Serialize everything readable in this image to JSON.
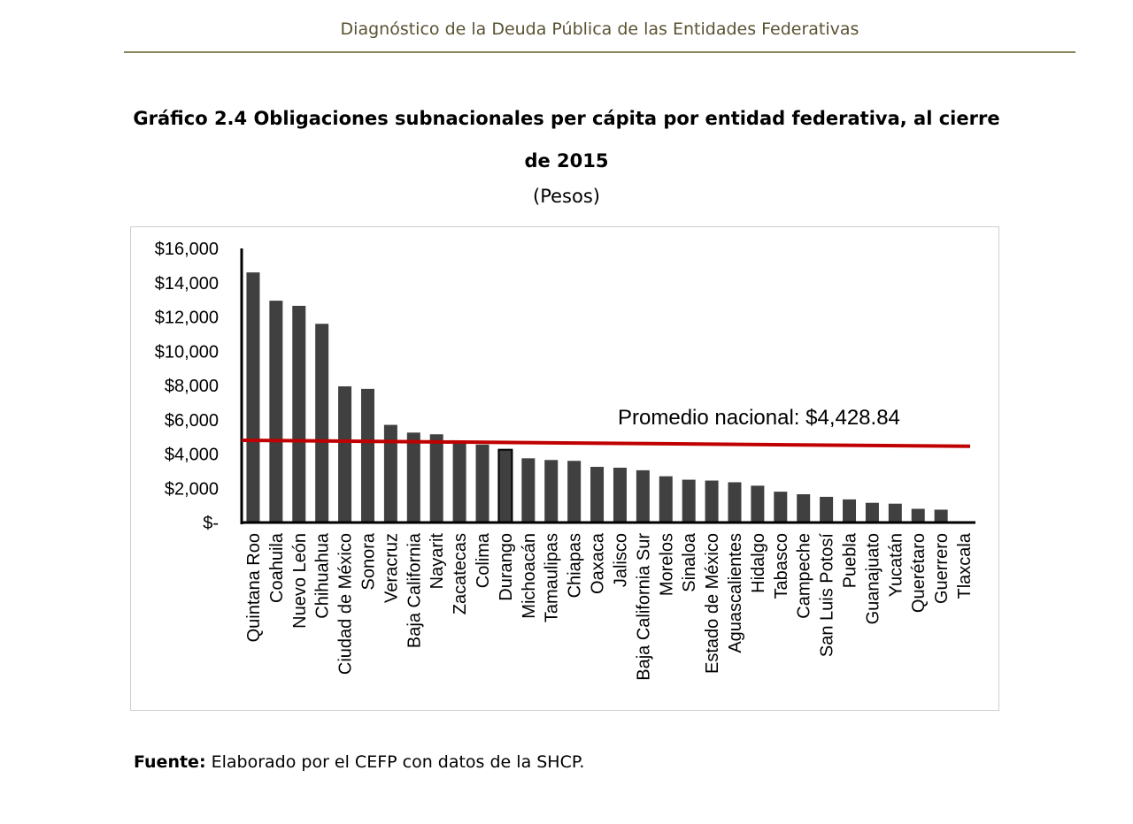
{
  "header": {
    "title": "Diagnóstico de la Deuda Pública de las Entidades Federativas"
  },
  "chart": {
    "title": "Gráfico 2.4 Obligaciones subnacionales per cápita por entidad federativa, al cierre de 2015",
    "subtitle": "(Pesos)"
  },
  "source": {
    "label": "Fuente:",
    "text": "Elaborado por el CEFP con datos de la SHCP."
  },
  "chart_data": {
    "type": "bar",
    "categories": [
      "Quintana Roo",
      "Coahuila",
      "Nuevo León",
      "Chihuahua",
      "Ciudad de México",
      "Sonora",
      "Veracruz",
      "Baja California",
      "Nayarit",
      "Zacatecas",
      "Colima",
      "Durango",
      "Michoacán",
      "Tamaulipas",
      "Chiapas",
      "Oaxaca",
      "Jalisco",
      "Baja California Sur",
      "Morelos",
      "Sinaloa",
      "Estado de México",
      "Aguascalientes",
      "Hidalgo",
      "Tabasco",
      "Campeche",
      "San Luis Potosí",
      "Puebla",
      "Guanajuato",
      "Yucatán",
      "Querétaro",
      "Guerrero",
      "Tlaxcala"
    ],
    "values": [
      14600,
      12950,
      12650,
      11600,
      7950,
      7800,
      5700,
      5250,
      5150,
      4800,
      4550,
      4250,
      3750,
      3650,
      3600,
      3250,
      3200,
      3050,
      2700,
      2500,
      2450,
      2350,
      2150,
      1800,
      1650,
      1500,
      1350,
      1150,
      1100,
      800,
      750,
      0
    ],
    "highlight_index": 11,
    "yticks": [
      "$16,000",
      "$14,000",
      "$12,000",
      "$10,000",
      "$8,000",
      "$6,000",
      "$4,000",
      "$2,000",
      "$-"
    ],
    "ylim": [
      0,
      16000
    ],
    "reference_line": {
      "label": "Promedio nacional: $4,428.84",
      "start_value": 4800,
      "end_value": 4450
    },
    "colors": {
      "bar": "#404040",
      "highlight_bar": "#404040",
      "highlight_outline": "#000000",
      "average_line": "#c00000"
    }
  }
}
